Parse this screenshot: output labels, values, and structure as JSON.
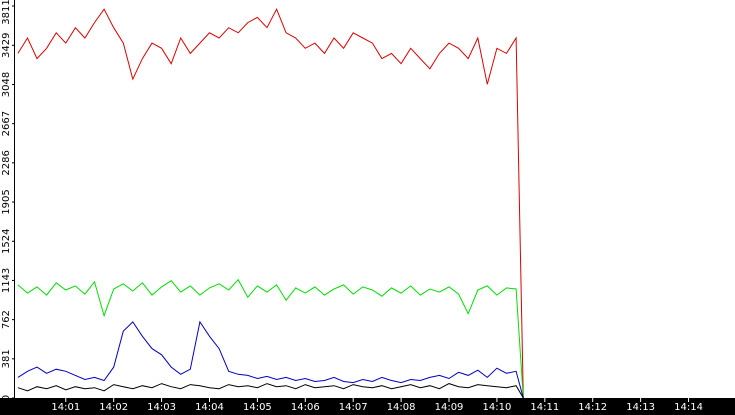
{
  "chart_data": {
    "type": "line",
    "x": [
      0,
      0.2,
      0.4,
      0.6,
      0.8,
      1.0,
      1.2,
      1.4,
      1.6,
      1.8,
      2.0,
      2.2,
      2.4,
      2.6,
      2.8,
      3.0,
      3.2,
      3.4,
      3.6,
      3.8,
      4.0,
      4.2,
      4.4,
      4.6,
      4.8,
      5.0,
      5.2,
      5.4,
      5.6,
      5.8,
      6.0,
      6.2,
      6.4,
      6.6,
      6.8,
      7.0,
      7.2,
      7.4,
      7.6,
      7.8,
      8.0,
      8.2,
      8.4,
      8.6,
      8.8,
      9.0,
      9.2,
      9.4,
      9.6,
      9.8,
      10.0,
      10.2,
      10.4,
      10.55
    ],
    "series": [
      {
        "name": "red",
        "color": "#e00000",
        "values": [
          3350,
          3500,
          3300,
          3400,
          3550,
          3450,
          3600,
          3500,
          3650,
          3780,
          3600,
          3450,
          3100,
          3300,
          3450,
          3400,
          3250,
          3500,
          3350,
          3450,
          3550,
          3500,
          3600,
          3550,
          3650,
          3700,
          3600,
          3780,
          3550,
          3500,
          3400,
          3450,
          3350,
          3500,
          3400,
          3550,
          3500,
          3450,
          3300,
          3350,
          3250,
          3400,
          3300,
          3200,
          3350,
          3450,
          3400,
          3300,
          3500,
          3050,
          3400,
          3350,
          3500,
          0
        ]
      },
      {
        "name": "green",
        "color": "#00e000",
        "values": [
          1100,
          1020,
          1080,
          1000,
          1120,
          1050,
          1090,
          1010,
          1130,
          800,
          1060,
          1110,
          1040,
          1120,
          1000,
          1080,
          1140,
          1030,
          1090,
          1000,
          1070,
          1110,
          1050,
          1150,
          980,
          1090,
          1030,
          1100,
          950,
          1070,
          1020,
          1080,
          1000,
          1060,
          1100,
          1010,
          1080,
          1050,
          990,
          1070,
          1020,
          1090,
          1000,
          1060,
          1030,
          1080,
          1010,
          820,
          1050,
          1090,
          1000,
          1070,
          1060,
          0
        ]
      },
      {
        "name": "blue",
        "color": "#0000c0",
        "values": [
          200,
          260,
          300,
          240,
          280,
          260,
          220,
          180,
          200,
          170,
          300,
          650,
          740,
          600,
          480,
          420,
          300,
          230,
          280,
          740,
          600,
          480,
          260,
          230,
          220,
          190,
          210,
          180,
          200,
          170,
          190,
          160,
          170,
          200,
          160,
          150,
          180,
          160,
          200,
          170,
          150,
          180,
          170,
          200,
          220,
          190,
          250,
          220,
          270,
          200,
          290,
          240,
          260,
          0
        ]
      },
      {
        "name": "black",
        "color": "#000000",
        "values": [
          100,
          70,
          110,
          90,
          120,
          80,
          110,
          90,
          100,
          70,
          130,
          110,
          90,
          120,
          100,
          140,
          110,
          90,
          130,
          120,
          100,
          90,
          130,
          110,
          120,
          100,
          140,
          110,
          120,
          90,
          130,
          100,
          110,
          120,
          90,
          130,
          110,
          100,
          120,
          90,
          110,
          130,
          100,
          120,
          90,
          140,
          110,
          100,
          130,
          120,
          110,
          100,
          120,
          0
        ]
      }
    ],
    "xlim": [
      -0.06,
      14.97
    ],
    "xticks": [
      {
        "value": 1,
        "label": "14:01"
      },
      {
        "value": 2,
        "label": "14:02"
      },
      {
        "value": 3,
        "label": "14:03"
      },
      {
        "value": 4,
        "label": "14:04"
      },
      {
        "value": 5,
        "label": "14:05"
      },
      {
        "value": 6,
        "label": "14:06"
      },
      {
        "value": 7,
        "label": "14:07"
      },
      {
        "value": 8,
        "label": "14:08"
      },
      {
        "value": 9,
        "label": "14:09"
      },
      {
        "value": 10,
        "label": "14:10"
      },
      {
        "value": 11,
        "label": "14:11"
      },
      {
        "value": 12,
        "label": "14:12"
      },
      {
        "value": 13,
        "label": "14:13"
      },
      {
        "value": 14,
        "label": "14:14"
      }
    ],
    "ylim": [
      0,
      3811
    ],
    "yticks": [
      0,
      381,
      762,
      1143,
      1524,
      1905,
      2286,
      2667,
      3048,
      3429,
      3811
    ]
  }
}
